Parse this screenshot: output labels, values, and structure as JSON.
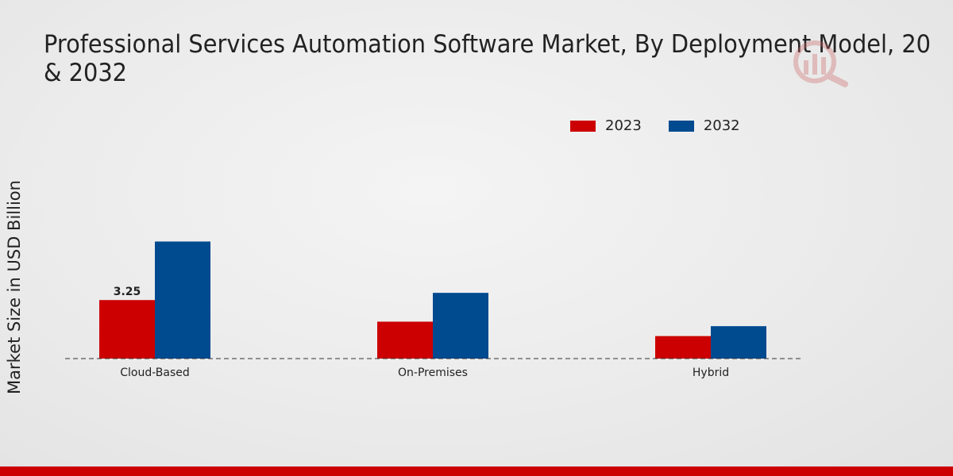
{
  "chart_data": {
    "type": "bar",
    "title_lines": [
      "Professional Services Automation Software Market, By Deployment Model, 20",
      "& 2032"
    ],
    "ylabel": "Market Size in USD Billion",
    "xlabel": "",
    "categories": [
      "Cloud-Based",
      "On-Premises",
      "Hybrid"
    ],
    "series": [
      {
        "name": "2023",
        "color": "#cc0000",
        "values": [
          3.25,
          2.05,
          1.25
        ]
      },
      {
        "name": "2032",
        "color": "#004a8f",
        "values": [
          6.5,
          3.65,
          1.8
        ]
      }
    ],
    "data_labels": [
      {
        "series": 0,
        "category": 0,
        "text": "3.25"
      }
    ],
    "ylim": [
      0,
      10
    ],
    "grid": false,
    "legend_position": "top-right"
  }
}
